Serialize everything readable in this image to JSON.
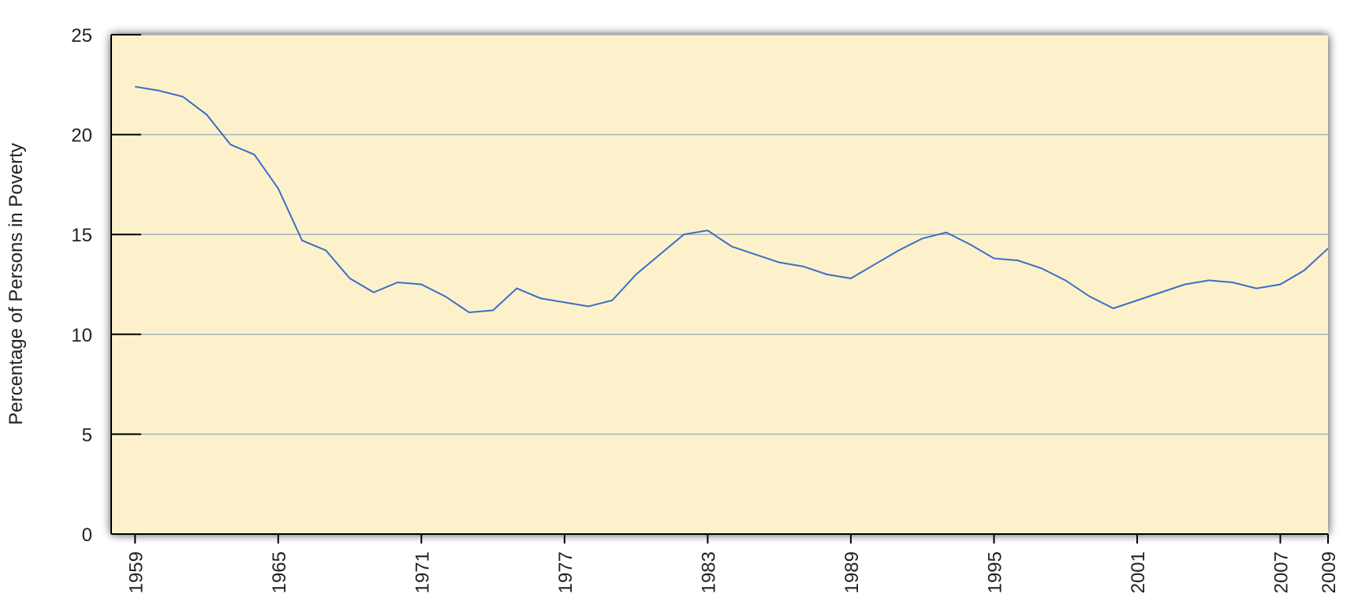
{
  "chart_data": {
    "type": "line",
    "y_label": "Percentage of Persons in Poverty",
    "x": [
      1959,
      1960,
      1961,
      1962,
      1963,
      1964,
      1965,
      1966,
      1967,
      1968,
      1969,
      1970,
      1971,
      1972,
      1973,
      1974,
      1975,
      1976,
      1977,
      1978,
      1979,
      1980,
      1981,
      1982,
      1983,
      1984,
      1985,
      1986,
      1987,
      1988,
      1989,
      1990,
      1991,
      1992,
      1993,
      1994,
      1995,
      1996,
      1997,
      1998,
      1999,
      2000,
      2001,
      2002,
      2003,
      2004,
      2005,
      2006,
      2007,
      2008,
      2009
    ],
    "values": [
      22.4,
      22.2,
      21.9,
      21.0,
      19.5,
      19.0,
      17.3,
      14.7,
      14.2,
      12.8,
      12.1,
      12.6,
      12.5,
      11.9,
      11.1,
      11.2,
      12.3,
      11.8,
      11.6,
      11.4,
      11.7,
      13.0,
      14.0,
      15.0,
      15.2,
      14.4,
      14.0,
      13.6,
      13.4,
      13.0,
      12.8,
      13.5,
      14.2,
      14.8,
      15.1,
      14.5,
      13.8,
      13.7,
      13.3,
      12.7,
      11.9,
      11.3,
      11.7,
      12.1,
      12.5,
      12.7,
      12.6,
      12.3,
      12.5,
      13.2,
      14.3
    ],
    "color": "#3a6fc4",
    "xlim": [
      1958,
      2009
    ],
    "xticks": [
      1959,
      1965,
      1971,
      1977,
      1983,
      1989,
      1995,
      2001,
      2007,
      2009
    ],
    "ylim": [
      0,
      25
    ],
    "yticks": [
      0,
      5,
      10,
      15,
      20,
      25
    ],
    "grid": true,
    "background": "#fdf1cc"
  }
}
